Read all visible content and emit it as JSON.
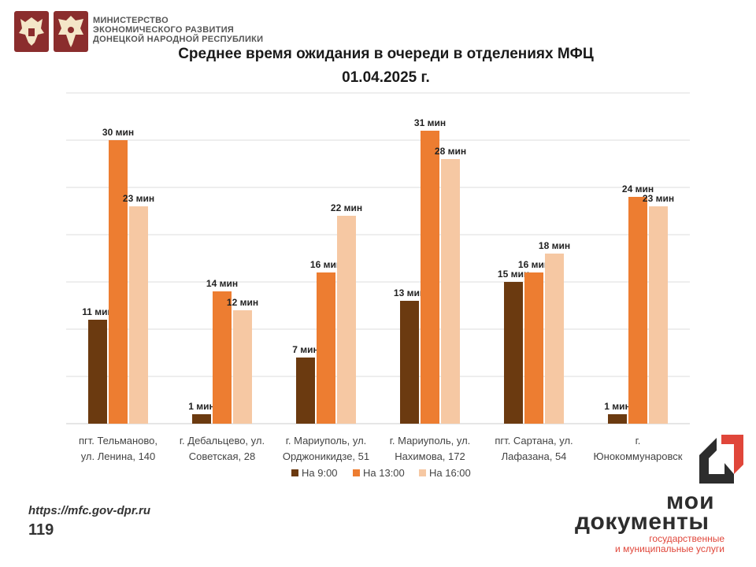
{
  "header": {
    "ministry_lines": [
      "МИНИСТЕРСТВО",
      "ЭКОНОМИЧЕСКОГО РАЗВИТИЯ",
      "ДОНЕЦКОЙ НАРОДНОЙ РЕСПУБЛИКИ"
    ],
    "emblem_icons": [
      "russia-coat-of-arms-icon",
      "dpr-coat-of-arms-icon"
    ]
  },
  "footer": {
    "website": "https://mfc.gov-dpr.ru",
    "page_number": "119"
  },
  "brand": {
    "line1": "мои",
    "line2": "документы",
    "line3": "государственные",
    "line4": "и муниципальные услуги",
    "colors": {
      "red": "#e0463a",
      "dark": "#2d2d2d"
    }
  },
  "chart_data": {
    "type": "bar",
    "title": "Среднее время ожидания в очереди в отделениях МФЦ",
    "subtitle": "01.04.2025   г.",
    "categories": [
      [
        "пгт. Тельманово,",
        "ул. Ленина, 140"
      ],
      [
        "г. Дебальцево, ул.",
        "Советская, 28"
      ],
      [
        "г. Мариуполь, ул.",
        "Орджоникидзе, 51"
      ],
      [
        "г. Мариуполь, ул.",
        "Нахимова, 172"
      ],
      [
        "пгт. Сартана, ул.",
        "Лафазана, 54"
      ],
      [
        "г.",
        "Юнокоммунаровск"
      ]
    ],
    "series": [
      {
        "name": "На 9:00",
        "color": "#6b3a10",
        "values": [
          11,
          1,
          7,
          13,
          15,
          1
        ]
      },
      {
        "name": "На 13:00",
        "color": "#ed7d31",
        "values": [
          30,
          14,
          16,
          31,
          16,
          24
        ]
      },
      {
        "name": "На 16:00",
        "color": "#f6c8a3",
        "values": [
          23,
          12,
          22,
          28,
          18,
          23
        ]
      }
    ],
    "value_suffix": " мин",
    "ylim": [
      0,
      35
    ],
    "grid": true,
    "legend": "bottom"
  }
}
